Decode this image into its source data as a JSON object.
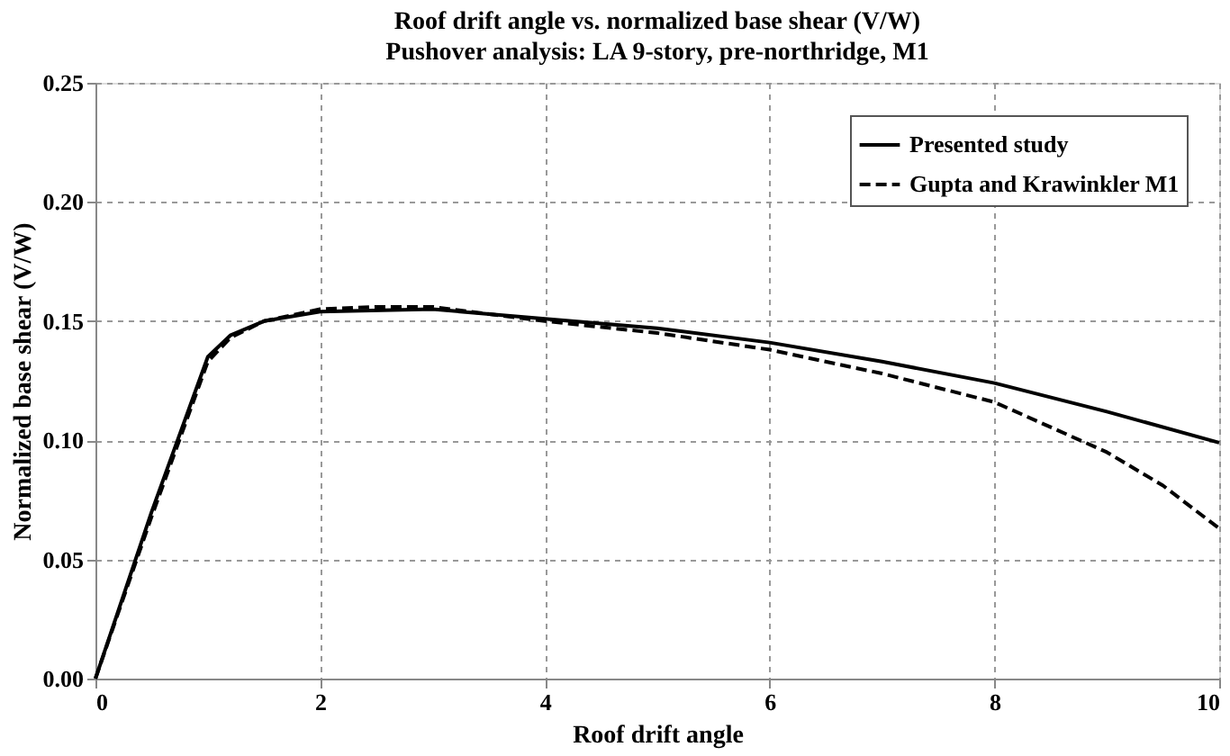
{
  "chart_data": {
    "type": "line",
    "title": "Roof drift angle vs. normalized base shear (V/W)",
    "subtitle": "Pushover analysis: LA 9-story, pre-northridge, M1",
    "xlabel": "Roof drift angle",
    "ylabel": "Normalized base shear (V/W)",
    "xlim": [
      0,
      10
    ],
    "xticks": [
      0,
      2,
      4,
      6,
      8,
      10
    ],
    "ylim": [
      0,
      0.25
    ],
    "yticks": [
      {
        "value": 0,
        "label": "0.00"
      },
      {
        "value": 0.05,
        "label": "0.05"
      },
      {
        "value": 0.1,
        "label": "0.10"
      },
      {
        "value": 0.15,
        "label": "0.15"
      },
      {
        "value": 0.2,
        "label": "0.20"
      },
      {
        "value": 0.25,
        "label": "0.25"
      }
    ],
    "grid": true,
    "legend": "top right",
    "marker": "none",
    "series": [
      {
        "name": "Presented study",
        "color": "#000000",
        "line_style": "solid",
        "x": [
          0,
          0.5,
          1,
          1.2,
          1.5,
          2,
          3,
          4,
          5,
          6,
          7,
          8,
          9,
          10
        ],
        "values": [
          0,
          0.07,
          0.135,
          0.144,
          0.15,
          0.154,
          0.155,
          0.151,
          0.147,
          0.141,
          0.133,
          0.124,
          0.112,
          0.099
        ]
      },
      {
        "name": "Gupta and Krawinkler M1",
        "color": "#000000",
        "line_style": "dashed",
        "x": [
          0,
          0.5,
          1,
          1.2,
          1.5,
          2,
          2.5,
          3,
          4,
          5,
          6,
          7,
          8,
          9,
          9.5,
          10
        ],
        "values": [
          0,
          0.068,
          0.133,
          0.143,
          0.15,
          0.155,
          0.156,
          0.156,
          0.15,
          0.145,
          0.138,
          0.128,
          0.116,
          0.095,
          0.081,
          0.063
        ]
      }
    ]
  }
}
